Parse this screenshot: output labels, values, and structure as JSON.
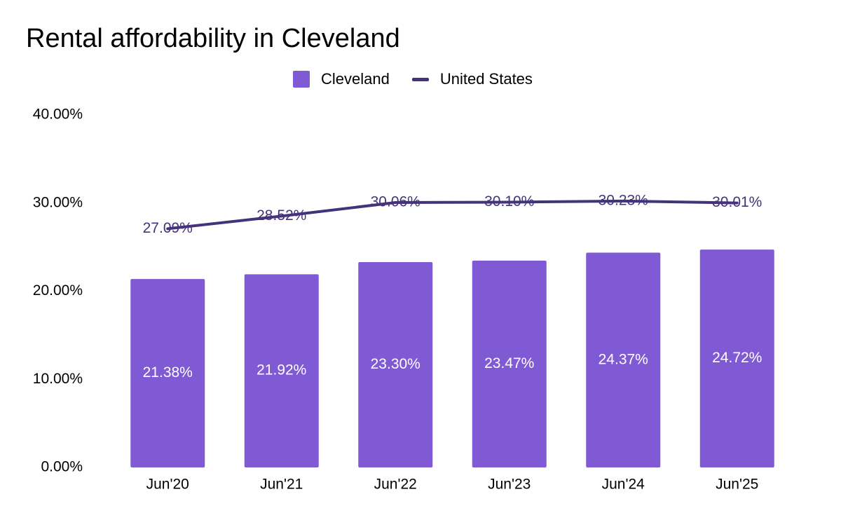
{
  "chart_data": {
    "type": "bar",
    "title": "Rental affordability in Cleveland",
    "xlabel": "",
    "ylabel": "",
    "categories": [
      "Jun'20",
      "Jun'21",
      "Jun'22",
      "Jun'23",
      "Jun'24",
      "Jun'25"
    ],
    "series": [
      {
        "name": "Cleveland",
        "type": "bar",
        "color": "#805AD5",
        "values": [
          21.38,
          21.92,
          23.3,
          23.47,
          24.37,
          24.72
        ],
        "labels": [
          "21.38%",
          "21.92%",
          "23.30%",
          "23.47%",
          "24.37%",
          "24.72%"
        ]
      },
      {
        "name": "United States",
        "type": "line",
        "color": "#44337A",
        "values": [
          27.09,
          28.52,
          30.06,
          30.1,
          30.23,
          30.01
        ],
        "labels": [
          "27.09%",
          "28.52%",
          "30.06%",
          "30.10%",
          "30.23%",
          "30.01%"
        ]
      }
    ],
    "ylim": [
      0,
      40
    ],
    "yticks": [
      0,
      10,
      20,
      30,
      40
    ],
    "ytick_labels": [
      "0.00%",
      "10.00%",
      "20.00%",
      "30.00%",
      "40.00%"
    ],
    "grid": false,
    "legend_position": "top-center"
  }
}
